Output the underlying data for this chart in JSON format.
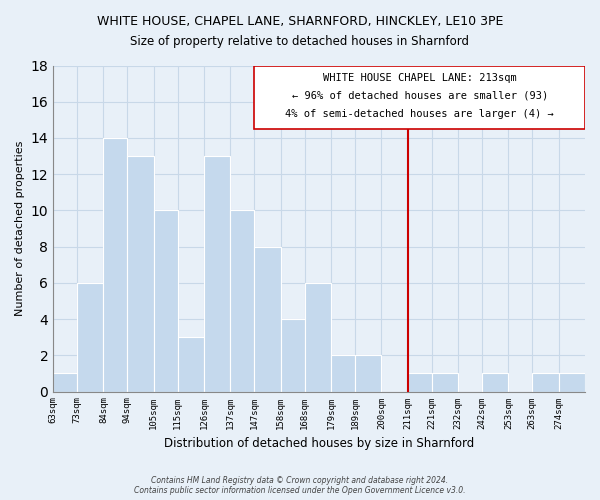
{
  "title": "WHITE HOUSE, CHAPEL LANE, SHARNFORD, HINCKLEY, LE10 3PE",
  "subtitle": "Size of property relative to detached houses in Sharnford",
  "xlabel": "Distribution of detached houses by size in Sharnford",
  "ylabel": "Number of detached properties",
  "bar_edges": [
    63,
    73,
    84,
    94,
    105,
    115,
    126,
    137,
    147,
    158,
    168,
    179,
    189,
    200,
    211,
    221,
    232,
    242,
    253,
    263,
    274
  ],
  "bar_heights": [
    1,
    6,
    14,
    13,
    10,
    3,
    13,
    10,
    8,
    4,
    6,
    2,
    2,
    0,
    1,
    1,
    0,
    1,
    0,
    1,
    1
  ],
  "tick_labels": [
    "63sqm",
    "73sqm",
    "84sqm",
    "94sqm",
    "105sqm",
    "115sqm",
    "126sqm",
    "137sqm",
    "147sqm",
    "158sqm",
    "168sqm",
    "179sqm",
    "189sqm",
    "200sqm",
    "211sqm",
    "221sqm",
    "232sqm",
    "242sqm",
    "253sqm",
    "263sqm",
    "274sqm"
  ],
  "bar_color": "#c5d9ed",
  "reference_line_x": 211,
  "reference_line_color": "#cc0000",
  "annotation_title": "WHITE HOUSE CHAPEL LANE: 213sqm",
  "annotation_line1": "← 96% of detached houses are smaller (93)",
  "annotation_line2": "4% of semi-detached houses are larger (4) →",
  "ylim": [
    0,
    18
  ],
  "yticks": [
    0,
    2,
    4,
    6,
    8,
    10,
    12,
    14,
    16,
    18
  ],
  "grid_color": "#c8d8e8",
  "bg_color": "#e8f0f8",
  "plot_bg_color": "#e8f0f8",
  "footnote1": "Contains HM Land Registry data © Crown copyright and database right 2024.",
  "footnote2": "Contains public sector information licensed under the Open Government Licence v3.0."
}
